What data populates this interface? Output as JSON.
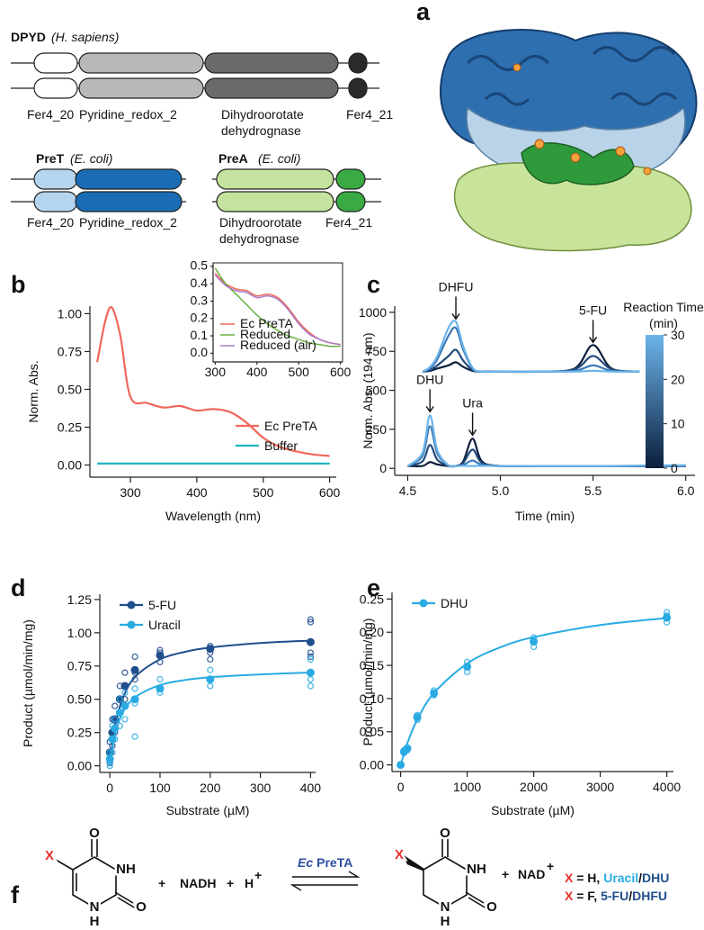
{
  "panel_a": {
    "label": "a",
    "dpyd": {
      "name": "DPYD",
      "organism": "(H. sapiens)",
      "domains": [
        "Fer4_20",
        "Pyridine_redox_2",
        [
          "Dihydroorotate",
          "dehydrognase"
        ],
        "Fer4_21"
      ]
    },
    "pret": {
      "name": "PreT",
      "organism": "(E. coli)",
      "domains": [
        "Fer4_20",
        "Pyridine_redox_2"
      ]
    },
    "prea": {
      "name": "PreA",
      "organism": "(E. coli)",
      "domains": [
        [
          "Dihydroorotate",
          "dehydrognase"
        ],
        "Fer4_21"
      ]
    }
  },
  "chart_data": [
    {
      "type": "line",
      "label": "b",
      "x_label": "Wavelength (nm)",
      "y_label": "Norm. Abs.",
      "x": [
        250,
        262,
        272,
        285,
        300,
        325,
        350,
        375,
        400,
        425,
        450,
        475,
        500,
        525,
        550,
        575,
        600
      ],
      "series": [
        {
          "name": "Ec PreTA",
          "color": "#f0675a",
          "values": [
            0.68,
            0.95,
            1.04,
            0.85,
            0.45,
            0.41,
            0.38,
            0.39,
            0.36,
            0.37,
            0.35,
            0.28,
            0.18,
            0.12,
            0.09,
            0.07,
            0.06
          ]
        },
        {
          "name": "Buffer",
          "color": "#20b5c0",
          "values": [
            0.01,
            0.01,
            0.01,
            0.01,
            0.01,
            0.01,
            0.01,
            0.01,
            0.01,
            0.01,
            0.01,
            0.01,
            0.01,
            0.01,
            0.01,
            0.01,
            0.01
          ]
        }
      ],
      "xlim": [
        239,
        610
      ],
      "xticks": [
        300,
        400,
        500,
        600
      ],
      "ylim": [
        -0.08,
        1.05
      ],
      "yticks": [
        {
          "value": 0,
          "label": "0.00"
        },
        0.25,
        {
          "value": 0.5,
          "label": "0.50"
        },
        0.75,
        {
          "value": 1,
          "label": "1.00"
        }
      ],
      "legend": "center-right"
    },
    {
      "type": "line",
      "x": [
        300,
        325,
        350,
        375,
        400,
        425,
        450,
        475,
        500,
        525,
        550,
        575,
        600
      ],
      "series": [
        {
          "name": "Ec PreTA",
          "color": "#f0675a",
          "values": [
            0.46,
            0.4,
            0.37,
            0.36,
            0.33,
            0.34,
            0.32,
            0.26,
            0.18,
            0.12,
            0.08,
            0.06,
            0.05
          ]
        },
        {
          "name": "Reduced",
          "color": "#6ab13e",
          "values": [
            0.49,
            0.4,
            0.34,
            0.28,
            0.22,
            0.17,
            0.13,
            0.1,
            0.08,
            0.06,
            0.05,
            0.04,
            0.04
          ]
        },
        {
          "name": "Reduced (air)",
          "color": "#a77cc8",
          "values": [
            0.45,
            0.39,
            0.36,
            0.35,
            0.32,
            0.33,
            0.31,
            0.25,
            0.17,
            0.11,
            0.08,
            0.06,
            0.05
          ]
        }
      ],
      "xlim": [
        295,
        605
      ],
      "xticks": [
        300,
        400,
        500,
        600
      ],
      "ylim": [
        -0.05,
        0.52
      ],
      "yticks": [
        {
          "value": 0,
          "label": "0.0"
        },
        0.1,
        0.2,
        0.3,
        0.4,
        0.5
      ],
      "legend": "lower-left"
    },
    {
      "type": "line",
      "label": "c",
      "x_label": "Time (min)",
      "y_label": "Norm. Abs. (194 nm)",
      "x": [
        4.5,
        4.58,
        4.62,
        4.66,
        4.72,
        4.76,
        4.8,
        4.85,
        4.9,
        5.0,
        5.2,
        5.4,
        5.5,
        5.6,
        5.75,
        6.0
      ],
      "series": [
        {
          "color": "#0b1e3c",
          "values": [
            15,
            15,
            40,
            25,
            15,
            15,
            45,
            190,
            45,
            15,
            15,
            15,
            15,
            15,
            15,
            15
          ]
        },
        {
          "color": "#22497a",
          "values": [
            15,
            45,
            150,
            55,
            16,
            15,
            35,
            120,
            35,
            15,
            15,
            15,
            15,
            15,
            15,
            15
          ]
        },
        {
          "color": "#3a78b5",
          "values": [
            15,
            80,
            270,
            95,
            18,
            15,
            22,
            50,
            22,
            15,
            15,
            15,
            15,
            15,
            15,
            15
          ]
        },
        {
          "color": "#6cb4ea",
          "values": [
            15,
            100,
            340,
            115,
            20,
            15,
            16,
            15,
            16,
            15,
            15,
            15,
            15,
            15,
            18,
            20
          ]
        },
        {
          "color": "#0b1e3c",
          "values": [
            null,
            620,
            625,
            640,
            660,
            680,
            650,
            625,
            620,
            620,
            620,
            640,
            790,
            640,
            620,
            null
          ]
        },
        {
          "color": "#22497a",
          "values": [
            null,
            620,
            630,
            660,
            720,
            760,
            690,
            630,
            620,
            620,
            620,
            635,
            720,
            635,
            620,
            null
          ]
        },
        {
          "color": "#3a78b5",
          "values": [
            null,
            620,
            640,
            700,
            850,
            900,
            760,
            640,
            620,
            620,
            620,
            625,
            660,
            625,
            620,
            null
          ]
        },
        {
          "color": "#6cb4ea",
          "values": [
            null,
            620,
            650,
            720,
            900,
            940,
            780,
            645,
            620,
            620,
            620,
            620,
            625,
            620,
            620,
            null
          ]
        }
      ],
      "annotations": [
        {
          "text": "DHFU",
          "x": 4.76,
          "y": 940
        },
        {
          "text": "5-FU",
          "x": 5.5,
          "y": 790
        },
        {
          "text": "DHU",
          "x": 4.62,
          "y": 345
        },
        {
          "text": "Ura",
          "x": 4.85,
          "y": 195
        }
      ],
      "colorbar": {
        "title": [
          "Reaction Time",
          "(min)"
        ],
        "lim": [
          0,
          30
        ],
        "ticks": [
          0,
          10,
          20,
          30
        ],
        "colors": [
          "#0b1e3c",
          "#6cb4ea"
        ]
      },
      "xlim": [
        4.43,
        6.05
      ],
      "xticks": [
        4.5,
        {
          "value": 5,
          "label": "5.0"
        },
        5.5,
        {
          "value": 6,
          "label": "6.0"
        }
      ],
      "ylim": [
        -45,
        1040
      ],
      "yticks": [
        0,
        250,
        500,
        750,
        1000
      ]
    },
    {
      "type": "scatter",
      "label": "d",
      "x_label": "Substrate (µM)",
      "y_label": "Product (µmol/min/mg)",
      "series": [
        {
          "name": "5-FU",
          "color": "#1f4e8c",
          "x": [
            0,
            5,
            10,
            20,
            30,
            50,
            100,
            200,
            400
          ],
          "values": [
            0.1,
            0.25,
            0.35,
            0.5,
            0.6,
            0.72,
            0.83,
            0.88,
            0.93
          ],
          "replicates": {
            "x": [
              0,
              0,
              5,
              5,
              10,
              10,
              20,
              20,
              30,
              30,
              50,
              50,
              50,
              100,
              100,
              100,
              200,
              200,
              200,
              400,
              400,
              400,
              400
            ],
            "values": [
              0.18,
              0.02,
              0.35,
              0.15,
              0.45,
              0.25,
              0.6,
              0.4,
              0.7,
              0.5,
              0.82,
              0.7,
              0.65,
              0.87,
              0.85,
              0.78,
              0.9,
              0.85,
              0.8,
              1.1,
              1.08,
              0.85,
              0.82
            ]
          },
          "fit": {
            "x": [
              0,
              10,
              25,
              50,
              100,
              150,
              200,
              300,
              400
            ],
            "values": [
              0,
              0.286,
              0.5,
              0.667,
              0.8,
              0.857,
              0.889,
              0.923,
              0.941
            ]
          }
        },
        {
          "name": "Uracil",
          "color": "#29abe2",
          "x": [
            0,
            5,
            10,
            20,
            30,
            50,
            100,
            200,
            400
          ],
          "values": [
            0.05,
            0.2,
            0.28,
            0.4,
            0.45,
            0.5,
            0.58,
            0.65,
            0.7
          ],
          "replicates": {
            "x": [
              0,
              0,
              5,
              5,
              10,
              10,
              20,
              20,
              30,
              30,
              50,
              50,
              50,
              100,
              100,
              200,
              200,
              400,
              400,
              400
            ],
            "values": [
              0.1,
              0.0,
              0.3,
              0.1,
              0.35,
              0.2,
              0.5,
              0.3,
              0.55,
              0.35,
              0.58,
              0.47,
              0.22,
              0.65,
              0.55,
              0.72,
              0.6,
              0.8,
              0.65,
              0.6
            ]
          },
          "fit": {
            "x": [
              0,
              10,
              25,
              50,
              100,
              150,
              200,
              300,
              400
            ],
            "values": [
              0,
              0.231,
              0.394,
              0.514,
              0.607,
              0.645,
              0.666,
              0.687,
              0.701
            ]
          }
        }
      ],
      "xlim": [
        -20,
        410
      ],
      "xticks": [
        0,
        100,
        200,
        300,
        400
      ],
      "ylim": [
        -0.05,
        1.29
      ],
      "yticks": [
        {
          "value": 0,
          "label": "0.00"
        },
        0.25,
        {
          "value": 0.5,
          "label": "0.50"
        },
        0.75,
        {
          "value": 1,
          "label": "1.00"
        },
        1.25
      ],
      "legend": "upper-left"
    },
    {
      "type": "scatter",
      "label": "e",
      "x_label": "Substrate (µM)",
      "y_label": "Product (µmol/min/mg)",
      "series": [
        {
          "name": "DHU",
          "color": "#29abe2",
          "x": [
            0,
            50,
            100,
            250,
            500,
            1000,
            2000,
            4000
          ],
          "values": [
            0,
            0.02,
            0.025,
            0.072,
            0.108,
            0.148,
            0.186,
            0.222
          ],
          "replicates": {
            "x": [
              0,
              50,
              50,
              100,
              100,
              250,
              250,
              500,
              500,
              1000,
              1000,
              1000,
              2000,
              2000,
              2000,
              4000,
              4000,
              4000
            ],
            "values": [
              0.0,
              0.022,
              0.018,
              0.025,
              0.022,
              0.075,
              0.068,
              0.112,
              0.105,
              0.155,
              0.148,
              0.14,
              0.192,
              0.185,
              0.178,
              0.23,
              0.225,
              0.215
            ]
          },
          "fit": {
            "x": [
              0,
              100,
              250,
              500,
              1000,
              1500,
              2000,
              3000,
              4000
            ],
            "values": [
              0,
              0.0325,
              0.0684,
              0.1083,
              0.1529,
              0.1773,
              0.1926,
              0.2108,
              0.2213
            ]
          }
        }
      ],
      "xlim": [
        -130,
        4100
      ],
      "xticks": [
        0,
        1000,
        2000,
        3000,
        4000
      ],
      "ylim": [
        -0.01,
        0.26
      ],
      "yticks": [
        {
          "value": 0,
          "label": "0.00"
        },
        0.05,
        {
          "value": 0.1,
          "label": "0.10"
        },
        0.15,
        {
          "value": 0.2,
          "label": "0.20"
        },
        0.25
      ],
      "legend": "upper-left"
    }
  ],
  "panel_f": {
    "label": "f",
    "substrate_atoms": [
      "X",
      "O",
      "NH",
      "N",
      "H",
      "O"
    ],
    "product_atoms": [
      "X",
      "O",
      "NH",
      "N",
      "H",
      "O"
    ],
    "plus": "+",
    "nadh": "NADH",
    "proton": "H",
    "charge": "+",
    "enzyme_species": "Ec",
    "enzyme": "PreTA",
    "nad": "NAD",
    "legend": [
      [
        {
          "text": "X",
          "color": "#e8312a"
        },
        {
          "text": " = H, ",
          "color": "#111111"
        },
        {
          "text": "Uracil",
          "color": "#29abe2"
        },
        {
          "text": "/",
          "color": "#111111"
        },
        {
          "text": "DHU",
          "color": "#1f4e8c"
        }
      ],
      [
        {
          "text": "X",
          "color": "#e8312a"
        },
        {
          "text": " = F, ",
          "color": "#111111"
        },
        {
          "text": "5-FU",
          "color": "#1f4e8c"
        },
        {
          "text": "/",
          "color": "#111111"
        },
        {
          "text": "DHFU",
          "color": "#1f4e8c"
        }
      ]
    ]
  }
}
